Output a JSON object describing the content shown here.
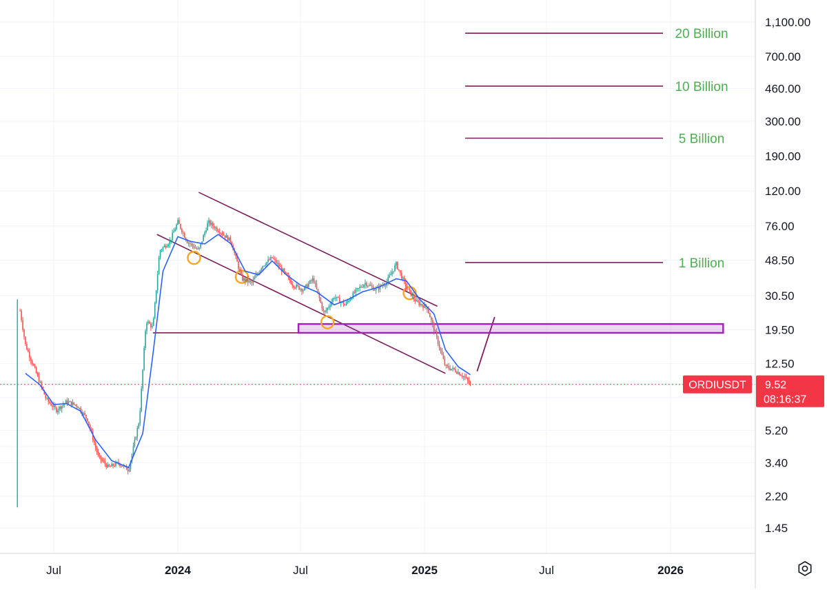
{
  "chart_data": {
    "type": "candlestick",
    "symbol": "ORDIUSDT",
    "scale": "log",
    "ylim": [
      1.2,
      1300
    ],
    "y_ticks": [
      "1,100.00",
      "700.00",
      "460.00",
      "300.00",
      "190.00",
      "120.00",
      "76.00",
      "48.50",
      "30.50",
      "19.50",
      "12.50",
      "5.20",
      "3.40",
      "2.20",
      "1.45"
    ],
    "x_ticks": [
      {
        "label": "Jul",
        "date": "2023-07-01",
        "bold": false
      },
      {
        "label": "2024",
        "date": "2024-01-01",
        "bold": true
      },
      {
        "label": "Jul",
        "date": "2024-07-01",
        "bold": false
      },
      {
        "label": "2025",
        "date": "2025-01-01",
        "bold": true
      },
      {
        "label": "Jul",
        "date": "2025-07-01",
        "bold": false
      },
      {
        "label": "2026",
        "date": "2026-01-01",
        "bold": true
      }
    ],
    "xlim": [
      "2023-05-10",
      "2026-05-15"
    ],
    "grid": true,
    "current_price": {
      "value": 9.52,
      "label": "9.52",
      "countdown": "08:16:37"
    },
    "series": [
      {
        "kind": "price",
        "points": [
          [
            "2023-05-10",
            28
          ],
          [
            "2023-05-20",
            16
          ],
          [
            "2023-06-05",
            11
          ],
          [
            "2023-06-20",
            7.8
          ],
          [
            "2023-07-05",
            6.8
          ],
          [
            "2023-07-20",
            7.6
          ],
          [
            "2023-08-05",
            7.2
          ],
          [
            "2023-08-20",
            6.0
          ],
          [
            "2023-09-05",
            3.7
          ],
          [
            "2023-09-20",
            3.2
          ],
          [
            "2023-10-05",
            3.4
          ],
          [
            "2023-10-20",
            3.1
          ],
          [
            "2023-11-05",
            6.0
          ],
          [
            "2023-11-15",
            22
          ],
          [
            "2023-11-25",
            20
          ],
          [
            "2023-12-05",
            55
          ],
          [
            "2023-12-20",
            62
          ],
          [
            "2024-01-01",
            80
          ],
          [
            "2024-01-15",
            62
          ],
          [
            "2024-02-01",
            55
          ],
          [
            "2024-02-15",
            80
          ],
          [
            "2024-03-01",
            72
          ],
          [
            "2024-03-20",
            62
          ],
          [
            "2024-04-05",
            38
          ],
          [
            "2024-04-20",
            36
          ],
          [
            "2024-05-05",
            45
          ],
          [
            "2024-05-20",
            50
          ],
          [
            "2024-06-05",
            42
          ],
          [
            "2024-06-20",
            35
          ],
          [
            "2024-07-05",
            33
          ],
          [
            "2024-07-20",
            38
          ],
          [
            "2024-08-05",
            24
          ],
          [
            "2024-08-20",
            30
          ],
          [
            "2024-09-05",
            27
          ],
          [
            "2024-09-20",
            32
          ],
          [
            "2024-10-05",
            36
          ],
          [
            "2024-10-20",
            33
          ],
          [
            "2024-11-05",
            36
          ],
          [
            "2024-11-20",
            46
          ],
          [
            "2024-12-05",
            34
          ],
          [
            "2024-12-20",
            28
          ],
          [
            "2025-01-05",
            26
          ],
          [
            "2025-01-20",
            17
          ],
          [
            "2025-02-01",
            12
          ],
          [
            "2025-02-15",
            11.5
          ],
          [
            "2025-03-01",
            10.5
          ],
          [
            "2025-03-10",
            9.52
          ]
        ]
      },
      {
        "kind": "moving-average",
        "points": [
          [
            "2023-05-20",
            11
          ],
          [
            "2023-06-10",
            9.5
          ],
          [
            "2023-07-01",
            7.3
          ],
          [
            "2023-07-20",
            7.4
          ],
          [
            "2023-08-10",
            6.7
          ],
          [
            "2023-09-01",
            4.6
          ],
          [
            "2023-09-25",
            3.5
          ],
          [
            "2023-10-20",
            3.2
          ],
          [
            "2023-11-10",
            5.0
          ],
          [
            "2023-11-25",
            14
          ],
          [
            "2023-12-10",
            42
          ],
          [
            "2024-01-01",
            66
          ],
          [
            "2024-01-20",
            62
          ],
          [
            "2024-02-10",
            60
          ],
          [
            "2024-03-01",
            68
          ],
          [
            "2024-03-20",
            60
          ],
          [
            "2024-04-10",
            42
          ],
          [
            "2024-04-30",
            40
          ],
          [
            "2024-05-20",
            48
          ],
          [
            "2024-06-10",
            40
          ],
          [
            "2024-07-01",
            35
          ],
          [
            "2024-07-25",
            32
          ],
          [
            "2024-08-20",
            27
          ],
          [
            "2024-09-10",
            29
          ],
          [
            "2024-10-01",
            32
          ],
          [
            "2024-10-25",
            34
          ],
          [
            "2024-11-20",
            38
          ],
          [
            "2024-12-05",
            37
          ],
          [
            "2024-12-25",
            29
          ],
          [
            "2025-01-15",
            24
          ],
          [
            "2025-02-01",
            15
          ],
          [
            "2025-02-20",
            12
          ],
          [
            "2025-03-10",
            10.8
          ]
        ]
      }
    ],
    "annotations": {
      "levels": [
        {
          "label": "20 Billion",
          "value": 950
        },
        {
          "label": "10 Billion",
          "value": 475
        },
        {
          "label": "5 Billion",
          "value": 240
        },
        {
          "label": "1 Billion",
          "value": 47
        }
      ],
      "channel_upper": [
        [
          "2024-02-01",
          118
        ],
        [
          "2025-01-20",
          26.5
        ]
      ],
      "channel_lower": [
        [
          "2023-12-01",
          68
        ],
        [
          "2025-02-01",
          11
        ]
      ],
      "support_line": [
        [
          "2023-11-25",
          18.7
        ],
        [
          "2024-06-28",
          18.7
        ]
      ],
      "support_zone": {
        "from": "2024-06-28",
        "to": "2026-03-20",
        "low": 18.7,
        "high": 21.0
      },
      "projection": [
        [
          "2025-03-20",
          11.3
        ],
        [
          "2025-04-15",
          23
        ]
      ],
      "touch_points": [
        [
          "2024-01-25",
          50
        ],
        [
          "2024-04-05",
          39
        ],
        [
          "2024-08-10",
          21.5
        ],
        [
          "2024-12-10",
          31.5
        ]
      ]
    }
  }
}
